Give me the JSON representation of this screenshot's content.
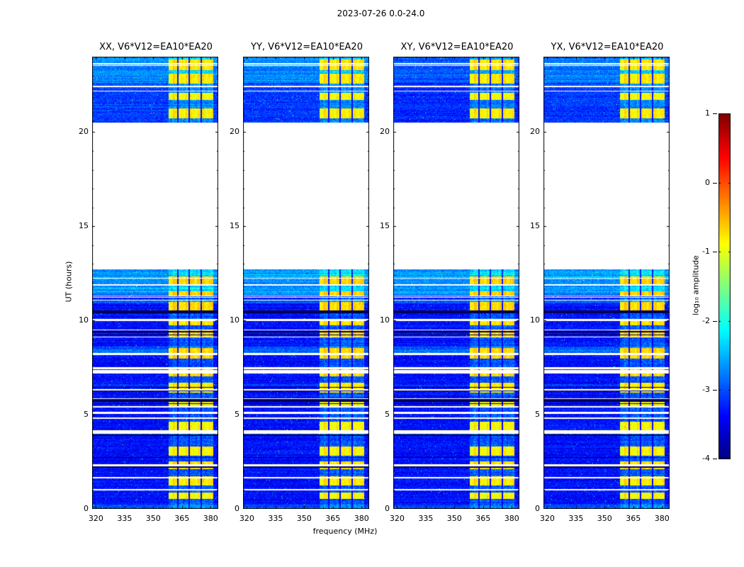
{
  "chart_data": {
    "type": "heatmap",
    "title": "2023-07-26 0.0-24.0",
    "xlabel": "frequency (MHz)",
    "ylabel": "UT (hours)",
    "panels": [
      {
        "title": "XX, V6*V12=EA10*EA20"
      },
      {
        "title": "YY, V6*V12=EA10*EA20"
      },
      {
        "title": "XY, V6*V12=EA10*EA20"
      },
      {
        "title": "YX, V6*V12=EA10*EA20"
      }
    ],
    "x_ticks": [
      320,
      335,
      350,
      365,
      380
    ],
    "x_range_mhz": [
      318,
      384
    ],
    "y_ticks": [
      0,
      5,
      10,
      15,
      20
    ],
    "y_range_hours": [
      0,
      24
    ],
    "colorbar": {
      "label": "log₁₀ amplitude",
      "ticks": [
        1,
        0,
        -1,
        -2,
        -3,
        -4
      ],
      "vmin": -4,
      "vmax": 1,
      "colormap": "jet"
    },
    "data_time_segments_hours": [
      [
        0.0,
        12.7
      ],
      [
        20.5,
        24.0
      ]
    ],
    "no_data_gap_hours": [
      12.7,
      20.5
    ],
    "rfi_band_mhz": [
      358,
      381
    ],
    "background_log10_amplitude": -3.3,
    "rfi_peak_log10_amplitude": -0.8,
    "grid": false,
    "legend": "none"
  }
}
